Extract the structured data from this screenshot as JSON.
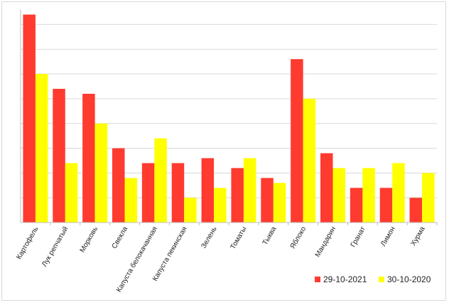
{
  "chart_data": {
    "type": "bar",
    "title": "",
    "xlabel": "",
    "ylabel": "",
    "ylim": [
      0,
      8.5
    ],
    "grid": true,
    "legend": "bottom-right",
    "categories": [
      "Картофель",
      "Лук репчатый",
      "Морковь",
      "Свекла",
      "Капуста белокачанная",
      "Капуста пекинская",
      "Зелень",
      "Томаты",
      "Тыква",
      "Яблоко",
      "Мандарин",
      "Гранат",
      "Лимон",
      "Хурма"
    ],
    "series": [
      {
        "name": "29-10-2021",
        "color": "#ff3b2f",
        "values": [
          8.4,
          5.4,
          5.2,
          3.0,
          2.4,
          2.4,
          2.6,
          2.2,
          1.8,
          6.6,
          2.8,
          1.4,
          1.4,
          1.0
        ]
      },
      {
        "name": "30-10-2020",
        "color": "#ffff00",
        "values": [
          6.0,
          2.4,
          4.0,
          1.8,
          3.4,
          1.0,
          1.4,
          2.6,
          1.6,
          5.0,
          2.2,
          2.2,
          2.4,
          2.0
        ]
      }
    ]
  }
}
